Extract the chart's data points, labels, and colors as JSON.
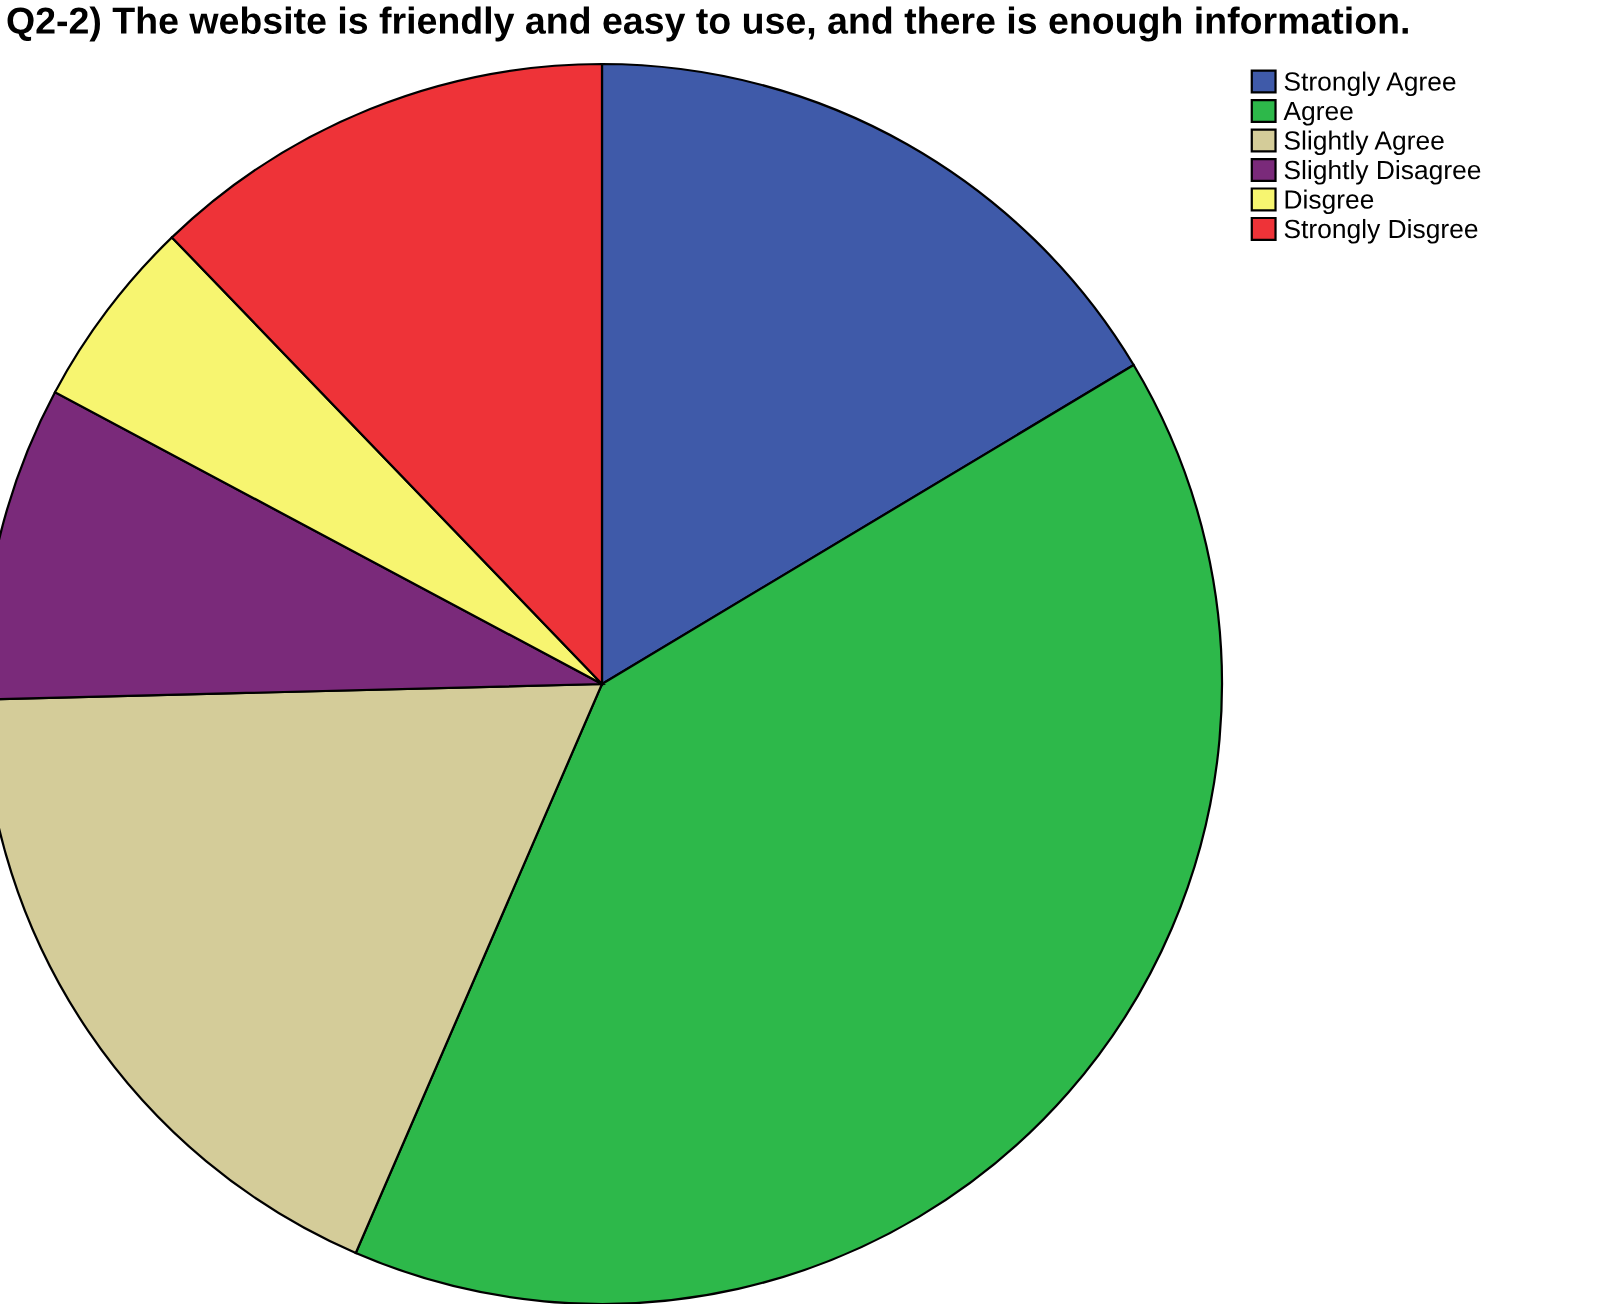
{
  "chart_data": {
    "type": "pie",
    "title": "Q2-2) The website is friendly and easy to use, and there is enough information.",
    "categories": [
      "Strongly Agree",
      "Agree",
      "Slightly Agree",
      "Slightly Disagree",
      "Disgree",
      "Strongly Disgree"
    ],
    "values": [
      16.4,
      40.1,
      18.1,
      8.2,
      5.0,
      12.2
    ],
    "colors": [
      "#3f5aa9",
      "#2db84a",
      "#d4cc99",
      "#7a2a7a",
      "#f7f570",
      "#ee3338"
    ],
    "legend": "top right"
  }
}
